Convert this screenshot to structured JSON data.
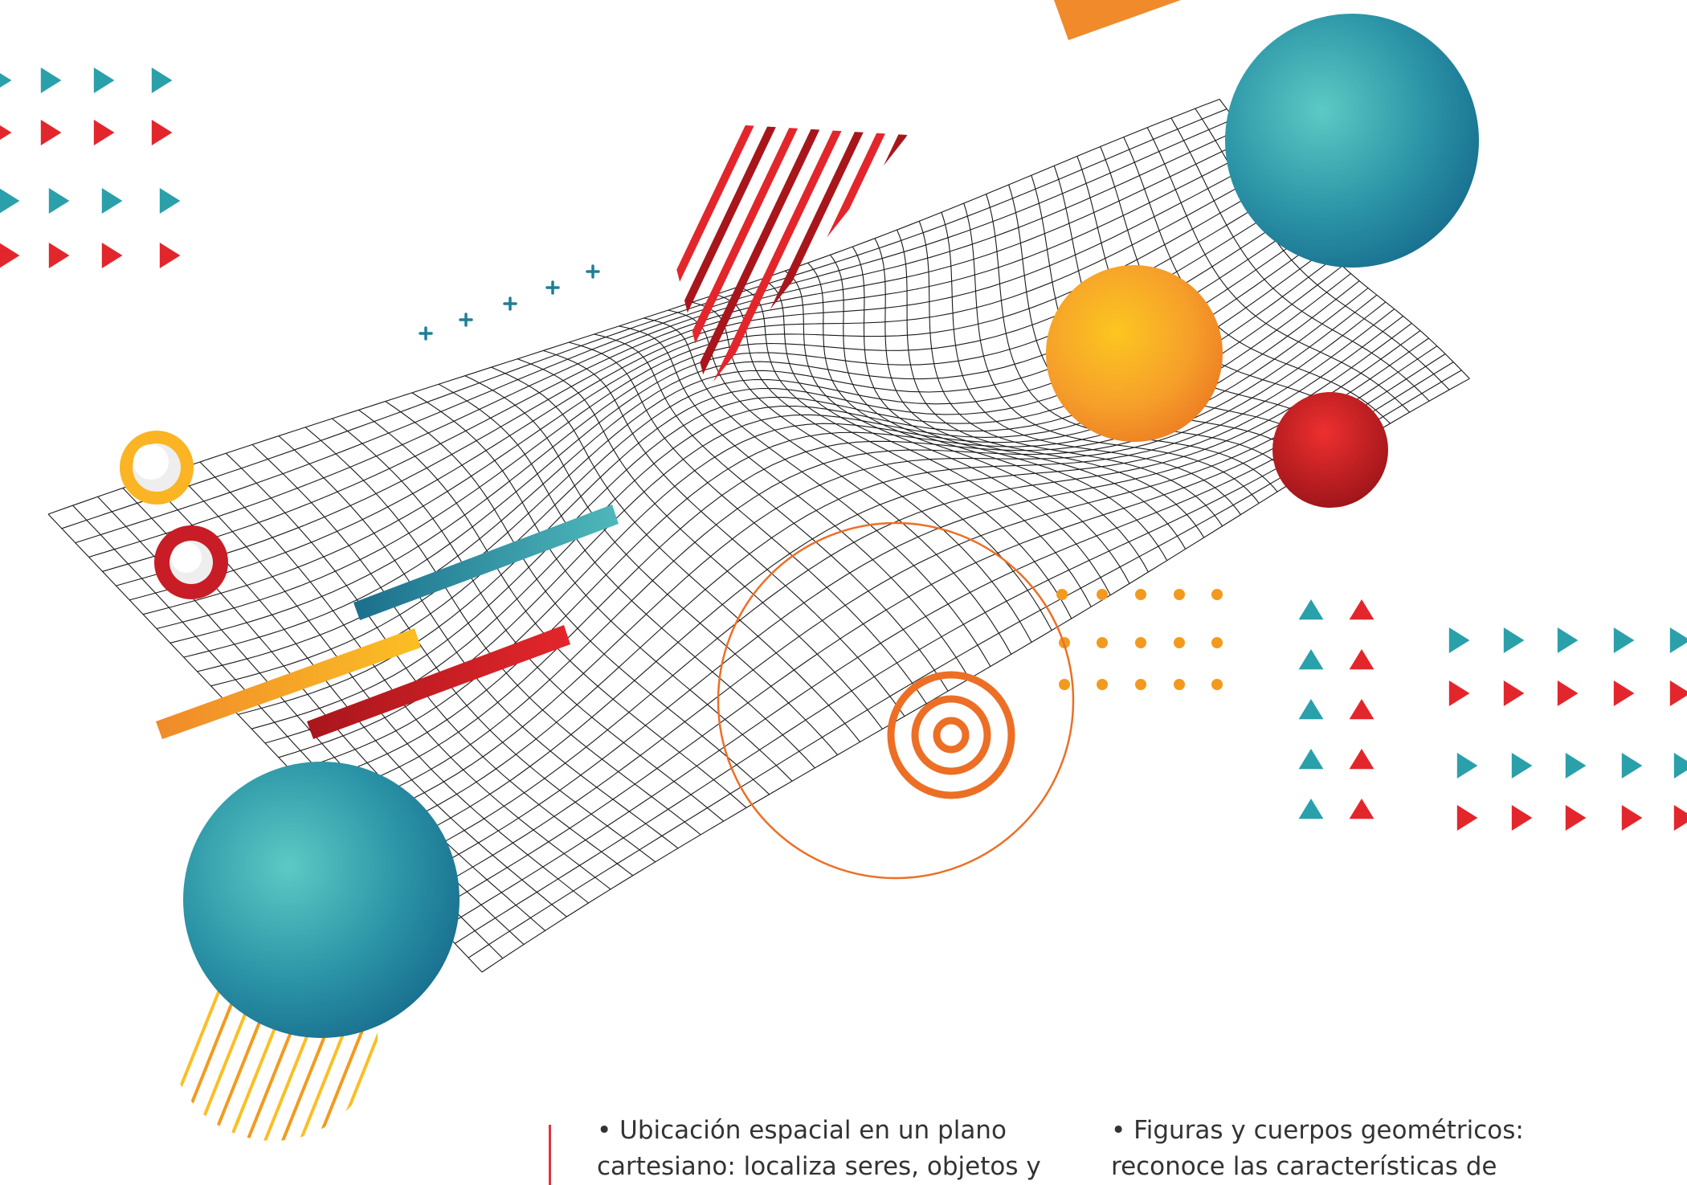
{
  "art": {
    "colors": {
      "teal": "#2aa0ab",
      "teal_dark": "#1a6f8c",
      "red": "#e3262b",
      "red_dark": "#a8161c",
      "orange": "#f39a1e",
      "yellow": "#fbbf24",
      "mesh": "#1a1a1a"
    },
    "icons": [
      "wireframe-mesh-surface",
      "teal-sphere",
      "orange-sphere",
      "red-sphere",
      "orange-ring",
      "red-ring",
      "concentric-circles",
      "striped-triangle",
      "triangle-grid",
      "plus-marks",
      "dot-grid",
      "diagonal-bars"
    ]
  },
  "text": {
    "column_1": {
      "line_1": "• Ubicación espacial en un plano",
      "line_2": "cartesiano: localiza seres, objetos y"
    },
    "column_2": {
      "line_1": "• Figuras y cuerpos geométricos:",
      "line_2": "reconoce las características de"
    }
  }
}
